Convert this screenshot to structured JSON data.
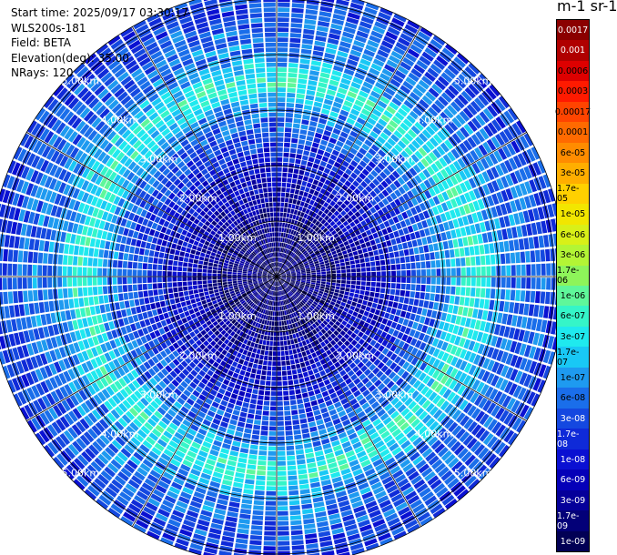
{
  "header": {
    "start_time": "Start time: 2025/09/17 03:30:17",
    "instrument": "WLS200s-181",
    "field": "Field: BETA",
    "elevation": "Elevation(deg): 35.00",
    "nrays": "NRays: 120"
  },
  "colorbar": {
    "unit_label": "m-1 sr-1",
    "ticks": [
      "0.0017",
      "0.001",
      "0.0006",
      "0.0003",
      "0.00017",
      "0.0001",
      "6e-05",
      "3e-05",
      "1.7e-05",
      "1e-05",
      "6e-06",
      "3e-06",
      "1.7e-06",
      "1e-06",
      "6e-07",
      "3e-07",
      "1.7e-07",
      "1e-07",
      "6e-08",
      "3e-08",
      "1.7e-08",
      "1e-08",
      "6e-09",
      "3e-09",
      "1.7e-09",
      "1e-09"
    ],
    "colors": [
      "#8b0000",
      "#b00000",
      "#dd0000",
      "#ff1a00",
      "#ff4400",
      "#ff6a00",
      "#ff8c00",
      "#ffae00",
      "#ffd000",
      "#f2e600",
      "#d9f018",
      "#b3f535",
      "#8ef45a",
      "#5ff79a",
      "#35f5c8",
      "#1fe9ee",
      "#19c8f5",
      "#1e9af0",
      "#1a6eea",
      "#1448e0",
      "#0f2ad8",
      "#0a10d2",
      "#0500b8",
      "#05009a",
      "#030078",
      "#020055"
    ]
  },
  "chart_data": {
    "type": "heatmap",
    "projection": "polar-ppi",
    "nrays": 120,
    "range_rings_km": [
      1,
      2,
      3,
      4,
      5
    ],
    "ring_label_texts": [
      "1.00km",
      "2.00km",
      "3.00km",
      "4.00km",
      "5.00km"
    ],
    "max_range_km": 5.2,
    "color_scale": "log",
    "value_range": [
      1e-09,
      0.0017
    ],
    "range_profile_log10": [
      {
        "range_km": 0.0,
        "log10_beta": -8.8
      },
      {
        "range_km": 1.0,
        "log10_beta": -8.6
      },
      {
        "range_km": 2.0,
        "log10_beta": -8.0
      },
      {
        "range_km": 3.0,
        "log10_beta": -7.2
      },
      {
        "range_km": 3.5,
        "log10_beta": -6.3
      },
      {
        "range_km": 4.0,
        "log10_beta": -7.1
      },
      {
        "range_km": 5.0,
        "log10_beta": -7.6
      }
    ]
  }
}
